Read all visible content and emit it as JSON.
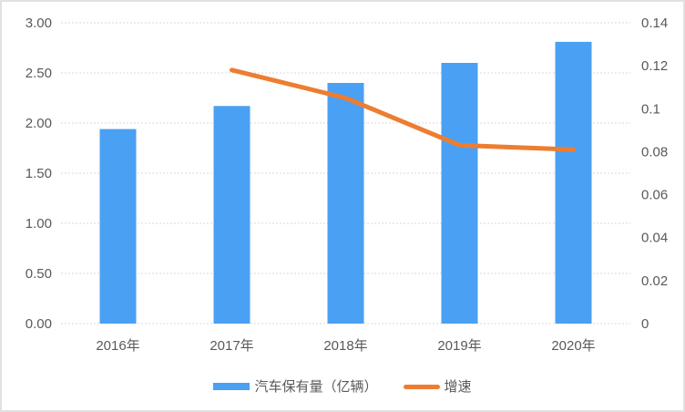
{
  "chart_data": {
    "type": "bar",
    "subtype": "combo-bar-line",
    "title": "",
    "xlabel": "",
    "ylabel": "",
    "grid": true,
    "legend_position": "bottom",
    "categories": [
      "2016年",
      "2017年",
      "2018年",
      "2019年",
      "2020年"
    ],
    "series": [
      {
        "name": "汽车保有量（亿辆）",
        "type": "bar",
        "axis": "left",
        "values": [
          1.94,
          2.17,
          2.4,
          2.6,
          2.81
        ],
        "color": "#4aa0f3"
      },
      {
        "name": "增速",
        "type": "line",
        "axis": "right",
        "values": [
          null,
          0.118,
          0.105,
          0.083,
          0.081
        ],
        "color": "#ed7d31"
      }
    ],
    "left_axis": {
      "min": 0,
      "max": 3,
      "tick_labels": [
        "0.00",
        "0.50",
        "1.00",
        "1.50",
        "2.00",
        "2.50",
        "3.00"
      ]
    },
    "right_axis": {
      "min": 0,
      "max": 0.14,
      "tick_labels": [
        "0",
        "0.02",
        "0.04",
        "0.06",
        "0.08",
        "0.1",
        "0.12",
        "0.14"
      ]
    }
  },
  "style": {
    "text_color": "#595959",
    "gridline_color": "#d9d9d9",
    "background": "#ffffff"
  }
}
